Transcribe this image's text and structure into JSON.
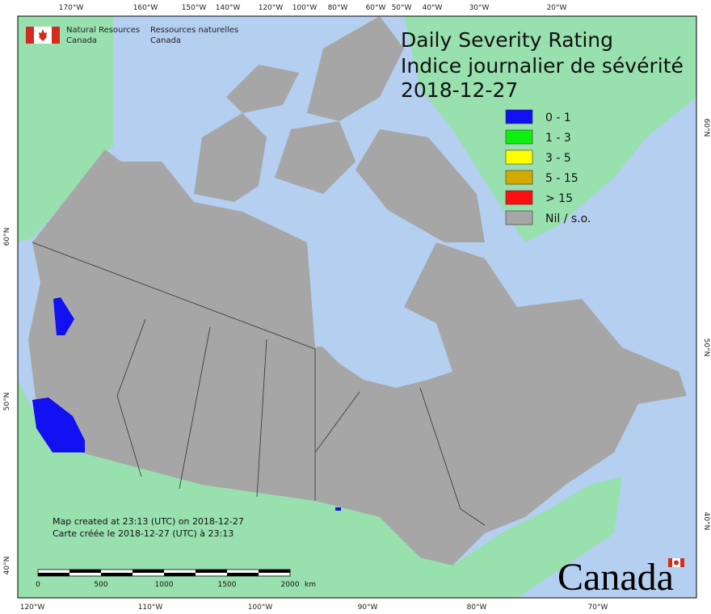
{
  "header": {
    "org_en": [
      "Natural Resources",
      "Canada"
    ],
    "org_fr": [
      "Ressources naturelles",
      "Canada"
    ]
  },
  "title": [
    "Daily Severity Rating",
    "Indice journalier de sévérité",
    "2018-12-27"
  ],
  "legend": [
    {
      "label": "0 - 1",
      "color": "#1010f0"
    },
    {
      "label": "1 - 3",
      "color": "#10f010"
    },
    {
      "label": "3 - 5",
      "color": "#ffff00"
    },
    {
      "label": "5 - 15",
      "color": "#d4aa00"
    },
    {
      "label": "> 15",
      "color": "#ff1010"
    },
    {
      "label": "Nil / s.o.",
      "color": "#a6a6a6"
    }
  ],
  "graticule": {
    "top": [
      "170°W",
      "160°W",
      "150°W",
      "140°W",
      "120°W",
      "100°W",
      "80°W",
      "60°W",
      "50°W",
      "40°W",
      "30°W",
      "20°W"
    ],
    "bottom": [
      "120°W",
      "110°W",
      "100°W",
      "90°W",
      "80°W",
      "70°W"
    ],
    "left": [
      "60°N",
      "50°N",
      "40°N"
    ],
    "right": [
      "60°N",
      "50°N",
      "40°N"
    ]
  },
  "footer": {
    "created_en": "Map created at 23:13 (UTC) on 2018-12-27",
    "created_fr": "Carte créée le 2018-12-27 (UTC) à 23:13"
  },
  "scale": {
    "ticks": [
      0,
      500,
      1000,
      1500,
      2000
    ],
    "unit": "km"
  },
  "wordmark": "Canada"
}
